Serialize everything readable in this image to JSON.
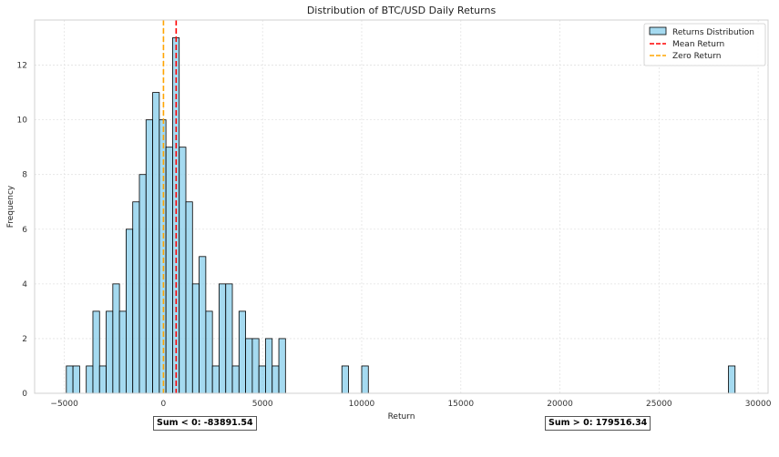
{
  "chart_data": {
    "type": "bar",
    "title": "Distribution of BTC/USD Daily Returns",
    "xlabel": "Return",
    "ylabel": "Frequency",
    "xlim": [
      -6500,
      30500
    ],
    "ylim": [
      0,
      13.65
    ],
    "xticks": [
      -5000,
      0,
      5000,
      10000,
      15000,
      20000,
      25000,
      30000
    ],
    "yticks": [
      0,
      2,
      4,
      6,
      8,
      10,
      12
    ],
    "grid": true,
    "bin_width": 335,
    "bins": [
      {
        "x": -4900,
        "count": 1
      },
      {
        "x": -4565,
        "count": 1
      },
      {
        "x": -3895,
        "count": 1
      },
      {
        "x": -3560,
        "count": 3
      },
      {
        "x": -3225,
        "count": 1
      },
      {
        "x": -2890,
        "count": 3
      },
      {
        "x": -2555,
        "count": 4
      },
      {
        "x": -2220,
        "count": 3
      },
      {
        "x": -1885,
        "count": 6
      },
      {
        "x": -1550,
        "count": 7
      },
      {
        "x": -1215,
        "count": 8
      },
      {
        "x": -880,
        "count": 10
      },
      {
        "x": -545,
        "count": 11
      },
      {
        "x": -210,
        "count": 10
      },
      {
        "x": 125,
        "count": 9
      },
      {
        "x": 460,
        "count": 13
      },
      {
        "x": 795,
        "count": 9
      },
      {
        "x": 1130,
        "count": 7
      },
      {
        "x": 1465,
        "count": 4
      },
      {
        "x": 1800,
        "count": 5
      },
      {
        "x": 2135,
        "count": 3
      },
      {
        "x": 2470,
        "count": 1
      },
      {
        "x": 2805,
        "count": 4
      },
      {
        "x": 3140,
        "count": 4
      },
      {
        "x": 3475,
        "count": 1
      },
      {
        "x": 3810,
        "count": 3
      },
      {
        "x": 4145,
        "count": 2
      },
      {
        "x": 4480,
        "count": 2
      },
      {
        "x": 4815,
        "count": 1
      },
      {
        "x": 5150,
        "count": 2
      },
      {
        "x": 5485,
        "count": 1
      },
      {
        "x": 5820,
        "count": 2
      },
      {
        "x": 9000,
        "count": 1
      },
      {
        "x": 10000,
        "count": 1
      },
      {
        "x": 28500,
        "count": 1
      }
    ],
    "mean_line": 640,
    "zero_line": 0,
    "legend": {
      "position": "top-right",
      "entries": [
        {
          "label": "Returns Distribution",
          "color": "#87ceeb"
        },
        {
          "label": "Mean Return",
          "color": "#ff0000"
        },
        {
          "label": "Zero Return",
          "color": "#ffa500"
        }
      ]
    },
    "annotations": {
      "sum_negative": "Sum < 0: -83891.54",
      "sum_positive": "Sum > 0: 179516.34"
    }
  }
}
